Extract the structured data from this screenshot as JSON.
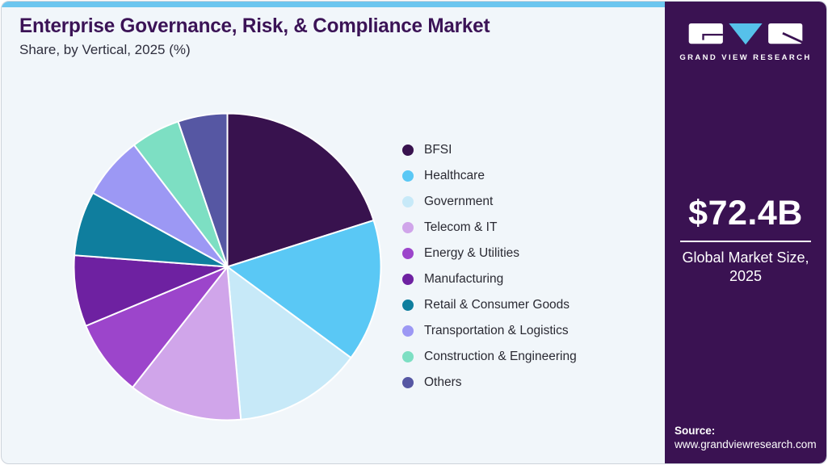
{
  "page": {
    "title": "Enterprise Governance, Risk, & Compliance Market",
    "subtitle": "Share, by Vertical, 2025 (%)",
    "accent_strip_color": "#6CC6EF",
    "card_bg_color": "#F1F6FA"
  },
  "chart_data": {
    "type": "pie",
    "title": "Enterprise Governance, Risk, & Compliance Market Share, by Vertical, 2025 (%)",
    "unit": "%",
    "start_angle_deg": 0,
    "direction": "clockwise",
    "legend_position": "right",
    "categories": [
      "BFSI",
      "Healthcare",
      "Government",
      "Telecom & IT",
      "Energy & Utilities",
      "Manufacturing",
      "Retail & Consumer Goods",
      "Transportation & Logistics",
      "Construction & Engineering",
      "Others"
    ],
    "values": [
      20.1,
      15.0,
      13.5,
      12.0,
      8.1,
      7.5,
      6.8,
      6.6,
      5.2,
      5.2
    ],
    "colors": [
      "#38124E",
      "#5AC8F5",
      "#C7E9F8",
      "#D0A5EA",
      "#9C45CB",
      "#6E21A1",
      "#0F7E9E",
      "#9C98F4",
      "#7DDFC3",
      "#5657A3"
    ],
    "slice_gap_color": "#FFFFFF"
  },
  "sidebar": {
    "bg_color": "#3A1252",
    "logo": {
      "brand": "GRAND VIEW RESEARCH",
      "g_block_icon": "gvr-g-block",
      "v_triangle_icon": "gvr-v-triangle",
      "r_block_icon": "gvr-r-block",
      "triangle_color": "#56C1EA",
      "block_color": "#FFFFFF"
    },
    "market_size_value": "$72.4B",
    "market_size_label_line1": "Global Market Size,",
    "market_size_label_line2": "2025",
    "source_label": "Source:",
    "source_url": "www.grandviewresearch.com"
  }
}
